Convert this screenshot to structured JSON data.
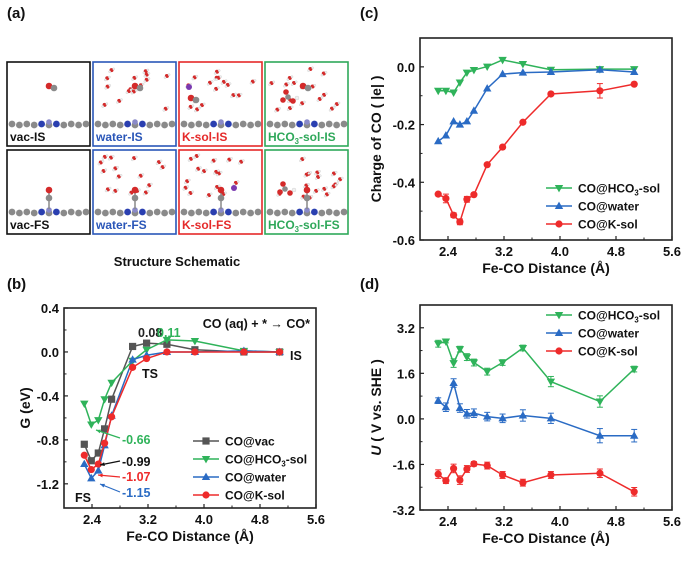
{
  "colors": {
    "vac": "#555555",
    "hco3": "#2fb35a",
    "water": "#2a6bc4",
    "ksol": "#ee2b2b",
    "water_atom": "#d42a2a",
    "carbon": "#8a8a8a",
    "nitrogen": "#2a3fb0",
    "iron": "#8a8ac8",
    "potassium": "#7a3ab0",
    "hydrogen": "#f0f0f0"
  },
  "panel_a": {
    "label": "(a)",
    "caption": "Structure Schematic",
    "boxes": [
      {
        "label": "vac-IS",
        "color": "#111111",
        "solvent": "none",
        "state": "IS"
      },
      {
        "label": "water-IS",
        "color": "#2a56b8",
        "solvent": "water",
        "state": "IS"
      },
      {
        "label": "K-sol-IS",
        "color": "#e52a2a",
        "solvent": "k",
        "state": "IS"
      },
      {
        "label": "HCO3-sol-IS",
        "label_main": "HCO",
        "label_sub": "3",
        "label_tail": "-sol-IS",
        "color": "#2fa85a",
        "solvent": "hco3",
        "state": "IS"
      },
      {
        "label": "vac-FS",
        "color": "#111111",
        "solvent": "none",
        "state": "FS"
      },
      {
        "label": "water-FS",
        "color": "#2a56b8",
        "solvent": "water",
        "state": "FS"
      },
      {
        "label": "K-sol-FS",
        "color": "#e52a2a",
        "solvent": "k",
        "state": "FS"
      },
      {
        "label": "HCO3-sol-FS",
        "label_main": "HCO",
        "label_sub": "3",
        "label_tail": "-sol-FS",
        "color": "#2fa85a",
        "solvent": "hco3",
        "state": "FS"
      }
    ]
  },
  "chart_data": [
    {
      "id": "b",
      "panel_label": "(b)",
      "type": "line",
      "title": "",
      "xlabel": "Fe-CO Distance (Å)",
      "ylabel": "G (eV)",
      "xlim": [
        2.0,
        5.6
      ],
      "ylim": [
        -1.42,
        0.4
      ],
      "xticks": [
        2.4,
        3.2,
        4.0,
        4.8,
        5.6
      ],
      "xtick_labels": [
        "2.4",
        "3.2",
        "4.0",
        "4.8",
        "5.6"
      ],
      "yticks": [
        0.4,
        0.0,
        -0.4,
        -0.8,
        -1.2
      ],
      "ytick_labels": [
        "0.4",
        "0.0",
        "-0.4",
        "-0.8",
        "-1.2"
      ],
      "grid": false,
      "legend": "bottom-right",
      "annotation_reaction": "CO (aq) + * → CO*",
      "series": [
        {
          "name": "CO@vac",
          "key": "vac",
          "marker": "square",
          "x": [
            2.29,
            2.39,
            2.49,
            2.58,
            2.68,
            2.98,
            3.18,
            3.47,
            3.87,
            4.57,
            5.08
          ],
          "y": [
            -0.84,
            -0.99,
            -0.92,
            -0.7,
            -0.43,
            0.05,
            0.08,
            0.07,
            0.02,
            0.0,
            0.0
          ]
        },
        {
          "name": "CO@HCO3-sol",
          "name_main": "CO@HCO",
          "name_sub": "3",
          "name_tail": "-sol",
          "key": "hco3",
          "marker": "triangle-down",
          "x": [
            2.29,
            2.39,
            2.49,
            2.58,
            2.68,
            2.98,
            3.18,
            3.47,
            3.87,
            4.57,
            5.08
          ],
          "y": [
            -0.47,
            -0.66,
            -0.62,
            -0.43,
            -0.28,
            -0.08,
            0.02,
            0.11,
            0.1,
            0.01,
            0.0
          ]
        },
        {
          "name": "CO@water",
          "key": "water",
          "marker": "triangle-up",
          "x": [
            2.29,
            2.39,
            2.49,
            2.58,
            2.68,
            2.98,
            3.18,
            3.47,
            3.87,
            4.57,
            5.08
          ],
          "y": [
            -1.02,
            -1.15,
            -1.08,
            -0.85,
            -0.58,
            -0.07,
            -0.03,
            0.0,
            0.0,
            0.01,
            0.0
          ]
        },
        {
          "name": "CO@K-sol",
          "key": "ksol",
          "marker": "circle",
          "x": [
            2.29,
            2.39,
            2.49,
            2.58,
            2.68,
            2.98,
            3.18,
            3.47,
            3.87,
            4.57,
            5.08
          ],
          "y": [
            -0.94,
            -1.07,
            -1.02,
            -0.83,
            -0.59,
            -0.14,
            -0.06,
            0.0,
            0.0,
            0.0,
            0.0
          ]
        }
      ],
      "annotations": [
        {
          "text": "0.08",
          "key": "vac"
        },
        {
          "text": "0.11",
          "key": "hco3"
        },
        {
          "text": "TS",
          "key": "text"
        },
        {
          "text": "IS",
          "key": "text"
        },
        {
          "text": "FS",
          "key": "text"
        },
        {
          "text": "-0.66",
          "key": "hco3"
        },
        {
          "text": "-0.99",
          "key": "vac"
        },
        {
          "text": "-1.07",
          "key": "ksol"
        },
        {
          "text": "-1.15",
          "key": "water"
        }
      ]
    },
    {
      "id": "c",
      "panel_label": "(c)",
      "type": "line",
      "title": "",
      "xlabel": "Fe-CO Distance (Å)",
      "ylabel": "Charge of CO ( |e| )",
      "xlim": [
        2.0,
        5.6
      ],
      "ylim": [
        -0.6,
        0.1
      ],
      "xticks": [
        2.4,
        3.2,
        4.0,
        4.8,
        5.6
      ],
      "xtick_labels": [
        "2.4",
        "3.2",
        "4.0",
        "4.8",
        "5.6"
      ],
      "yticks": [
        0.0,
        -0.2,
        -0.4,
        -0.6
      ],
      "ytick_labels": [
        "0.0",
        "-0.2",
        "-0.4",
        "-0.6"
      ],
      "grid": false,
      "legend": "bottom-right",
      "series": [
        {
          "name": "CO@HCO3-sol",
          "name_main": "CO@HCO",
          "name_sub": "3",
          "name_tail": "-sol",
          "key": "hco3",
          "marker": "triangle-down",
          "x": [
            2.26,
            2.37,
            2.48,
            2.57,
            2.67,
            2.77,
            2.96,
            3.18,
            3.47,
            3.87,
            4.57,
            5.06
          ],
          "y": [
            -0.083,
            -0.083,
            -0.089,
            -0.054,
            -0.02,
            -0.011,
            0.001,
            0.024,
            0.01,
            -0.01,
            -0.008,
            -0.008
          ]
        },
        {
          "name": "CO@water",
          "key": "water",
          "marker": "triangle-up",
          "x": [
            2.26,
            2.37,
            2.48,
            2.57,
            2.67,
            2.77,
            2.96,
            3.18,
            3.47,
            3.87,
            4.57,
            5.06
          ],
          "y": [
            -0.258,
            -0.238,
            -0.189,
            -0.2,
            -0.189,
            -0.152,
            -0.075,
            -0.025,
            -0.02,
            -0.018,
            -0.01,
            -0.018
          ]
        },
        {
          "name": "CO@K-sol",
          "key": "ksol",
          "marker": "circle",
          "x": [
            2.26,
            2.37,
            2.48,
            2.57,
            2.67,
            2.77,
            2.96,
            3.18,
            3.47,
            3.87,
            4.57,
            5.06
          ],
          "y": [
            -0.441,
            -0.456,
            -0.514,
            -0.537,
            -0.459,
            -0.443,
            -0.339,
            -0.278,
            -0.192,
            -0.094,
            -0.083,
            -0.06
          ],
          "err": [
            0,
            0.015,
            0.008,
            0.01,
            0.01,
            0,
            0,
            0,
            0,
            0,
            0.025,
            0
          ]
        }
      ]
    },
    {
      "id": "d",
      "panel_label": "(d)",
      "type": "line",
      "title": "",
      "xlabel": "Fe-CO Distance (Å)",
      "ylabel": "U ( V vs. SHE )",
      "xlim": [
        2.0,
        5.6
      ],
      "ylim": [
        -3.2,
        4.0
      ],
      "xticks": [
        2.4,
        3.2,
        4.0,
        4.8,
        5.6
      ],
      "xtick_labels": [
        "2.4",
        "3.2",
        "4.0",
        "4.8",
        "5.6"
      ],
      "yticks": [
        3.2,
        1.6,
        0.0,
        -1.6,
        -3.2
      ],
      "ytick_labels": [
        "3.2",
        "1.6",
        "0.0",
        "-1.6",
        "-3.2"
      ],
      "grid": false,
      "legend": "top-right",
      "series": [
        {
          "name": "CO@HCO3-sol",
          "name_main": "CO@HCO",
          "name_sub": "3",
          "name_tail": "-sol",
          "key": "hco3",
          "marker": "triangle-down",
          "x": [
            2.26,
            2.37,
            2.48,
            2.57,
            2.67,
            2.77,
            2.96,
            3.18,
            3.47,
            3.87,
            4.57,
            5.06
          ],
          "y": [
            2.64,
            2.72,
            1.96,
            2.45,
            2.17,
            1.98,
            1.66,
            1.98,
            2.49,
            1.31,
            0.61,
            1.75
          ],
          "err": [
            0.12,
            0.05,
            0.15,
            0.1,
            0.12,
            0.12,
            0.12,
            0.1,
            0.1,
            0.18,
            0.2,
            0.1
          ]
        },
        {
          "name": "CO@water",
          "key": "water",
          "marker": "triangle-up",
          "x": [
            2.26,
            2.37,
            2.48,
            2.57,
            2.67,
            2.77,
            2.96,
            3.18,
            3.47,
            3.87,
            4.57,
            5.06
          ],
          "y": [
            0.64,
            0.41,
            1.26,
            0.38,
            0.18,
            0.2,
            0.08,
            0.02,
            0.12,
            0.02,
            -0.59,
            -0.59
          ],
          "err": [
            0.1,
            0.15,
            0.15,
            0.15,
            0.15,
            0.15,
            0.15,
            0.15,
            0.2,
            0.18,
            0.25,
            0.22
          ]
        },
        {
          "name": "CO@K-sol",
          "key": "ksol",
          "marker": "circle",
          "x": [
            2.26,
            2.37,
            2.48,
            2.57,
            2.67,
            2.77,
            2.96,
            3.18,
            3.47,
            3.87,
            4.57,
            5.06
          ],
          "y": [
            -1.94,
            -2.17,
            -1.74,
            -2.15,
            -1.76,
            -1.58,
            -1.64,
            -1.97,
            -2.24,
            -1.97,
            -1.91,
            -2.56
          ],
          "err": [
            0.15,
            0.1,
            0.15,
            0.15,
            0.12,
            0.08,
            0.12,
            0.12,
            0.12,
            0.12,
            0.15,
            0.15
          ]
        }
      ]
    }
  ]
}
